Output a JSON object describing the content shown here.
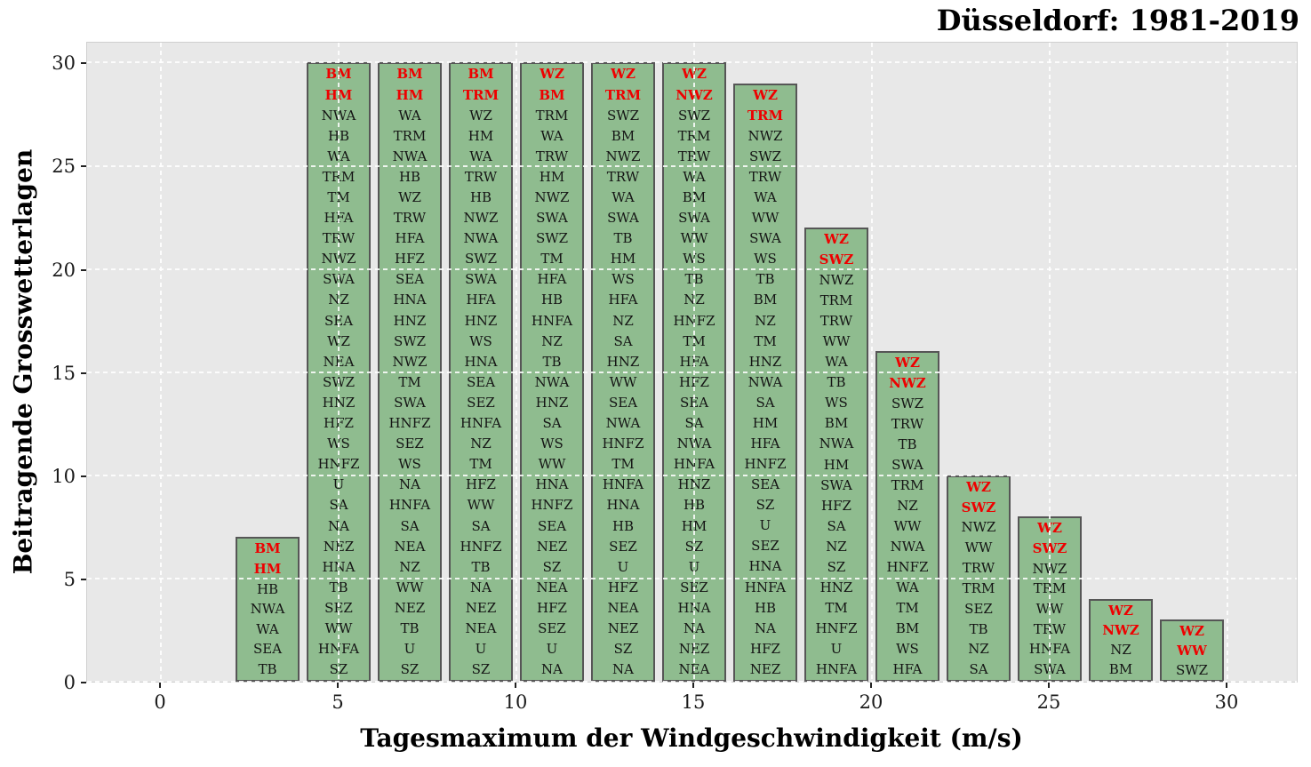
{
  "chart_data": {
    "type": "bar",
    "title": "Düsseldorf: 1981-2019",
    "xlabel": "Tagesmaximum der Windgeschwindigkeit (m/s)",
    "ylabel": "Beitragende Grosswetterlagen",
    "xlim": [
      -2.075,
      32
    ],
    "ylim": [
      0,
      31.05
    ],
    "xticks": [
      0,
      5,
      10,
      15,
      20,
      25,
      30
    ],
    "yticks": [
      0,
      5,
      10,
      15,
      20,
      25,
      30
    ],
    "grid": "dashed-white-both-axes",
    "legend": "none",
    "bar_width": 1.8,
    "bar_color": "#8fbc8f",
    "bar_edge_color": "#565656",
    "label_color": "#141414",
    "highlight_color": "#ee0000",
    "plot_bg": "#e8e8e8",
    "bars": [
      {
        "x": 3,
        "value": 7,
        "red_count": 2,
        "labels": [
          "BM",
          "HM",
          "HB",
          "NWA",
          "WA",
          "SEA",
          "TB"
        ]
      },
      {
        "x": 5,
        "value": 30,
        "red_count": 2,
        "labels": [
          "BM",
          "HM",
          "NWA",
          "HB",
          "WA",
          "TRM",
          "TM",
          "HFA",
          "TRW",
          "NWZ",
          "SWA",
          "NZ",
          "SEA",
          "WZ",
          "NEA",
          "SWZ",
          "HNZ",
          "HFZ",
          "WS",
          "HNFZ",
          "U",
          "SA",
          "NA",
          "NEZ",
          "HNA",
          "TB",
          "SEZ",
          "WW",
          "HNFA",
          "SZ"
        ]
      },
      {
        "x": 7,
        "value": 30,
        "red_count": 2,
        "labels": [
          "BM",
          "HM",
          "WA",
          "TRM",
          "NWA",
          "HB",
          "WZ",
          "TRW",
          "HFA",
          "HFZ",
          "SEA",
          "HNA",
          "HNZ",
          "SWZ",
          "NWZ",
          "TM",
          "SWA",
          "HNFZ",
          "SEZ",
          "WS",
          "NA",
          "HNFA",
          "SA",
          "NEA",
          "NZ",
          "WW",
          "NEZ",
          "TB",
          "U",
          "SZ"
        ]
      },
      {
        "x": 9,
        "value": 30,
        "red_count": 2,
        "labels": [
          "BM",
          "TRM",
          "WZ",
          "HM",
          "WA",
          "TRW",
          "HB",
          "NWZ",
          "NWA",
          "SWZ",
          "SWA",
          "HFA",
          "HNZ",
          "WS",
          "HNA",
          "SEA",
          "SEZ",
          "HNFA",
          "NZ",
          "TM",
          "HFZ",
          "WW",
          "SA",
          "HNFZ",
          "TB",
          "NA",
          "NEZ",
          "NEA",
          "U",
          "SZ"
        ]
      },
      {
        "x": 11,
        "value": 30,
        "red_count": 2,
        "labels": [
          "WZ",
          "BM",
          "TRM",
          "WA",
          "TRW",
          "HM",
          "NWZ",
          "SWA",
          "SWZ",
          "TM",
          "HFA",
          "HB",
          "HNFA",
          "NZ",
          "TB",
          "NWA",
          "HNZ",
          "SA",
          "WS",
          "WW",
          "HNA",
          "HNFZ",
          "SEA",
          "NEZ",
          "SZ",
          "NEA",
          "HFZ",
          "SEZ",
          "U",
          "NA"
        ]
      },
      {
        "x": 13,
        "value": 30,
        "red_count": 2,
        "labels": [
          "WZ",
          "TRM",
          "SWZ",
          "BM",
          "NWZ",
          "TRW",
          "WA",
          "SWA",
          "TB",
          "HM",
          "WS",
          "HFA",
          "NZ",
          "SA",
          "HNZ",
          "WW",
          "SEA",
          "NWA",
          "HNFZ",
          "TM",
          "HNFA",
          "HNA",
          "HB",
          "SEZ",
          "U",
          "HFZ",
          "NEA",
          "NEZ",
          "SZ",
          "NA"
        ]
      },
      {
        "x": 15,
        "value": 30,
        "red_count": 2,
        "labels": [
          "WZ",
          "NWZ",
          "SWZ",
          "TRM",
          "TRW",
          "WA",
          "BM",
          "SWA",
          "WW",
          "WS",
          "TB",
          "NZ",
          "HNFZ",
          "TM",
          "HFA",
          "HFZ",
          "SEA",
          "SA",
          "NWA",
          "HNFA",
          "HNZ",
          "HB",
          "HM",
          "SZ",
          "U",
          "SEZ",
          "HNA",
          "NA",
          "NEZ",
          "NEA"
        ]
      },
      {
        "x": 17,
        "value": 29,
        "red_count": 2,
        "labels": [
          "WZ",
          "TRM",
          "NWZ",
          "SWZ",
          "TRW",
          "WA",
          "WW",
          "SWA",
          "WS",
          "TB",
          "BM",
          "NZ",
          "TM",
          "HNZ",
          "NWA",
          "SA",
          "HM",
          "HFA",
          "HNFZ",
          "SEA",
          "SZ",
          "U",
          "SEZ",
          "HNA",
          "HNFA",
          "HB",
          "NA",
          "HFZ",
          "NEZ"
        ]
      },
      {
        "x": 19,
        "value": 22,
        "red_count": 2,
        "labels": [
          "WZ",
          "SWZ",
          "NWZ",
          "TRM",
          "TRW",
          "WW",
          "WA",
          "TB",
          "WS",
          "BM",
          "NWA",
          "HM",
          "SWA",
          "HFZ",
          "SA",
          "NZ",
          "SZ",
          "HNZ",
          "TM",
          "HNFZ",
          "U",
          "HNFA"
        ]
      },
      {
        "x": 21,
        "value": 16,
        "red_count": 2,
        "labels": [
          "WZ",
          "NWZ",
          "SWZ",
          "TRW",
          "TB",
          "SWA",
          "TRM",
          "NZ",
          "WW",
          "NWA",
          "HNFZ",
          "WA",
          "TM",
          "BM",
          "WS",
          "HFA"
        ]
      },
      {
        "x": 23,
        "value": 10,
        "red_count": 2,
        "labels": [
          "WZ",
          "SWZ",
          "NWZ",
          "WW",
          "TRW",
          "TRM",
          "SEZ",
          "TB",
          "NZ",
          "SA"
        ]
      },
      {
        "x": 25,
        "value": 8,
        "red_count": 2,
        "labels": [
          "WZ",
          "SWZ",
          "NWZ",
          "TRM",
          "WW",
          "TRW",
          "HNFA",
          "SWA"
        ]
      },
      {
        "x": 27,
        "value": 4,
        "red_count": 2,
        "labels": [
          "WZ",
          "NWZ",
          "NZ",
          "BM"
        ]
      },
      {
        "x": 29,
        "value": 3,
        "red_count": 2,
        "labels": [
          "WZ",
          "WW",
          "SWZ"
        ]
      }
    ]
  }
}
